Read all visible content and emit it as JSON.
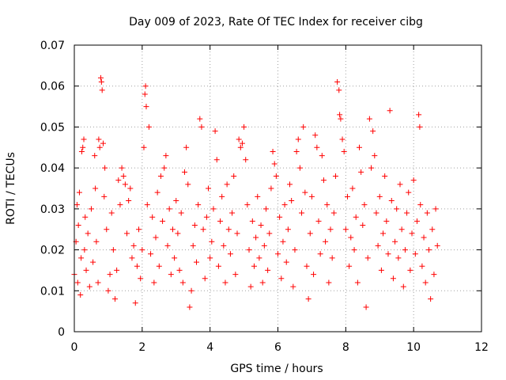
{
  "chart_data": {
    "type": "scatter",
    "title": "Day 009 of 2023, Rate Of TEC Index for receiver cibg",
    "xlabel": "GPS time / hours",
    "ylabel": "ROTI / TECUs",
    "xlim": [
      0,
      12
    ],
    "ylim": [
      0,
      0.07
    ],
    "x_ticks": [
      0,
      2,
      4,
      6,
      8,
      10,
      12
    ],
    "y_ticks": [
      0,
      0.01,
      0.02,
      0.03,
      0.04,
      0.05,
      0.06,
      0.07
    ],
    "x_tick_labels": [
      "0",
      "2",
      "4",
      "6",
      "8",
      "10",
      "12"
    ],
    "y_tick_labels": [
      "0",
      "0.01",
      "0.02",
      "0.03",
      "0.04",
      "0.05",
      "0.06",
      "0.07"
    ],
    "grid": true,
    "marker": "+",
    "color": "#ff0000",
    "series": [
      {
        "name": "ROTI",
        "points": [
          [
            0.0,
            0.014
          ],
          [
            0.05,
            0.022
          ],
          [
            0.08,
            0.031
          ],
          [
            0.1,
            0.012
          ],
          [
            0.12,
            0.026
          ],
          [
            0.15,
            0.034
          ],
          [
            0.18,
            0.009
          ],
          [
            0.2,
            0.018
          ],
          [
            0.22,
            0.044
          ],
          [
            0.25,
            0.045
          ],
          [
            0.28,
            0.047
          ],
          [
            0.3,
            0.02
          ],
          [
            0.32,
            0.028
          ],
          [
            0.35,
            0.015
          ],
          [
            0.4,
            0.024
          ],
          [
            0.45,
            0.011
          ],
          [
            0.5,
            0.03
          ],
          [
            0.55,
            0.017
          ],
          [
            0.6,
            0.043
          ],
          [
            0.62,
            0.035
          ],
          [
            0.65,
            0.022
          ],
          [
            0.7,
            0.012
          ],
          [
            0.72,
            0.047
          ],
          [
            0.75,
            0.045
          ],
          [
            0.78,
            0.062
          ],
          [
            0.8,
            0.061
          ],
          [
            0.82,
            0.059
          ],
          [
            0.85,
            0.046
          ],
          [
            0.88,
            0.033
          ],
          [
            0.9,
            0.04
          ],
          [
            0.95,
            0.025
          ],
          [
            1.0,
            0.01
          ],
          [
            1.05,
            0.014
          ],
          [
            1.1,
            0.029
          ],
          [
            1.15,
            0.02
          ],
          [
            1.2,
            0.008
          ],
          [
            1.25,
            0.015
          ],
          [
            1.3,
            0.037
          ],
          [
            1.35,
            0.031
          ],
          [
            1.4,
            0.04
          ],
          [
            1.45,
            0.038
          ],
          [
            1.5,
            0.036
          ],
          [
            1.55,
            0.024
          ],
          [
            1.6,
            0.032
          ],
          [
            1.65,
            0.035
          ],
          [
            1.7,
            0.018
          ],
          [
            1.75,
            0.021
          ],
          [
            1.8,
            0.007
          ],
          [
            1.85,
            0.016
          ],
          [
            1.9,
            0.025
          ],
          [
            1.95,
            0.013
          ],
          [
            2.0,
            0.02
          ],
          [
            2.05,
            0.045
          ],
          [
            2.08,
            0.058
          ],
          [
            2.1,
            0.06
          ],
          [
            2.12,
            0.055
          ],
          [
            2.15,
            0.031
          ],
          [
            2.2,
            0.05
          ],
          [
            2.25,
            0.019
          ],
          [
            2.3,
            0.028
          ],
          [
            2.35,
            0.012
          ],
          [
            2.4,
            0.023
          ],
          [
            2.45,
            0.034
          ],
          [
            2.5,
            0.016
          ],
          [
            2.55,
            0.038
          ],
          [
            2.6,
            0.027
          ],
          [
            2.65,
            0.04
          ],
          [
            2.7,
            0.043
          ],
          [
            2.75,
            0.021
          ],
          [
            2.8,
            0.03
          ],
          [
            2.85,
            0.014
          ],
          [
            2.9,
            0.025
          ],
          [
            2.95,
            0.018
          ],
          [
            3.0,
            0.032
          ],
          [
            3.05,
            0.024
          ],
          [
            3.1,
            0.015
          ],
          [
            3.15,
            0.029
          ],
          [
            3.2,
            0.012
          ],
          [
            3.25,
            0.039
          ],
          [
            3.3,
            0.045
          ],
          [
            3.35,
            0.036
          ],
          [
            3.4,
            0.006
          ],
          [
            3.45,
            0.01
          ],
          [
            3.5,
            0.021
          ],
          [
            3.55,
            0.026
          ],
          [
            3.6,
            0.017
          ],
          [
            3.65,
            0.031
          ],
          [
            3.7,
            0.052
          ],
          [
            3.75,
            0.05
          ],
          [
            3.8,
            0.025
          ],
          [
            3.85,
            0.013
          ],
          [
            3.9,
            0.028
          ],
          [
            3.95,
            0.035
          ],
          [
            4.0,
            0.018
          ],
          [
            4.05,
            0.022
          ],
          [
            4.1,
            0.03
          ],
          [
            4.15,
            0.049
          ],
          [
            4.2,
            0.042
          ],
          [
            4.25,
            0.016
          ],
          [
            4.3,
            0.027
          ],
          [
            4.35,
            0.033
          ],
          [
            4.4,
            0.021
          ],
          [
            4.45,
            0.012
          ],
          [
            4.5,
            0.036
          ],
          [
            4.55,
            0.025
          ],
          [
            4.6,
            0.019
          ],
          [
            4.65,
            0.029
          ],
          [
            4.7,
            0.038
          ],
          [
            4.75,
            0.014
          ],
          [
            4.8,
            0.024
          ],
          [
            4.85,
            0.047
          ],
          [
            4.9,
            0.045
          ],
          [
            4.95,
            0.046
          ],
          [
            5.0,
            0.05
          ],
          [
            5.05,
            0.042
          ],
          [
            5.1,
            0.031
          ],
          [
            5.15,
            0.02
          ],
          [
            5.2,
            0.011
          ],
          [
            5.25,
            0.027
          ],
          [
            5.3,
            0.016
          ],
          [
            5.35,
            0.023
          ],
          [
            5.4,
            0.033
          ],
          [
            5.45,
            0.018
          ],
          [
            5.5,
            0.026
          ],
          [
            5.55,
            0.012
          ],
          [
            5.6,
            0.021
          ],
          [
            5.65,
            0.03
          ],
          [
            5.7,
            0.015
          ],
          [
            5.75,
            0.024
          ],
          [
            5.8,
            0.035
          ],
          [
            5.85,
            0.044
          ],
          [
            5.9,
            0.041
          ],
          [
            5.95,
            0.038
          ],
          [
            6.0,
            0.019
          ],
          [
            6.05,
            0.028
          ],
          [
            6.1,
            0.013
          ],
          [
            6.15,
            0.022
          ],
          [
            6.2,
            0.031
          ],
          [
            6.25,
            0.017
          ],
          [
            6.3,
            0.025
          ],
          [
            6.35,
            0.036
          ],
          [
            6.4,
            0.032
          ],
          [
            6.45,
            0.011
          ],
          [
            6.5,
            0.02
          ],
          [
            6.55,
            0.044
          ],
          [
            6.6,
            0.047
          ],
          [
            6.65,
            0.04
          ],
          [
            6.7,
            0.029
          ],
          [
            6.75,
            0.05
          ],
          [
            6.8,
            0.034
          ],
          [
            6.85,
            0.016
          ],
          [
            6.9,
            0.008
          ],
          [
            6.95,
            0.024
          ],
          [
            7.0,
            0.033
          ],
          [
            7.05,
            0.014
          ],
          [
            7.1,
            0.048
          ],
          [
            7.15,
            0.045
          ],
          [
            7.2,
            0.027
          ],
          [
            7.25,
            0.019
          ],
          [
            7.3,
            0.043
          ],
          [
            7.35,
            0.037
          ],
          [
            7.4,
            0.022
          ],
          [
            7.45,
            0.031
          ],
          [
            7.5,
            0.012
          ],
          [
            7.55,
            0.025
          ],
          [
            7.6,
            0.018
          ],
          [
            7.65,
            0.029
          ],
          [
            7.7,
            0.038
          ],
          [
            7.75,
            0.061
          ],
          [
            7.8,
            0.059
          ],
          [
            7.82,
            0.053
          ],
          [
            7.85,
            0.052
          ],
          [
            7.9,
            0.047
          ],
          [
            7.95,
            0.044
          ],
          [
            8.0,
            0.025
          ],
          [
            8.05,
            0.033
          ],
          [
            8.1,
            0.016
          ],
          [
            8.15,
            0.023
          ],
          [
            8.2,
            0.035
          ],
          [
            8.25,
            0.02
          ],
          [
            8.3,
            0.028
          ],
          [
            8.35,
            0.012
          ],
          [
            8.4,
            0.045
          ],
          [
            8.45,
            0.039
          ],
          [
            8.5,
            0.026
          ],
          [
            8.55,
            0.031
          ],
          [
            8.6,
            0.006
          ],
          [
            8.65,
            0.018
          ],
          [
            8.7,
            0.052
          ],
          [
            8.75,
            0.04
          ],
          [
            8.8,
            0.049
          ],
          [
            8.85,
            0.043
          ],
          [
            8.9,
            0.029
          ],
          [
            8.95,
            0.021
          ],
          [
            9.0,
            0.033
          ],
          [
            9.05,
            0.015
          ],
          [
            9.1,
            0.024
          ],
          [
            9.15,
            0.038
          ],
          [
            9.2,
            0.027
          ],
          [
            9.25,
            0.019
          ],
          [
            9.3,
            0.054
          ],
          [
            9.35,
            0.032
          ],
          [
            9.4,
            0.013
          ],
          [
            9.45,
            0.022
          ],
          [
            9.5,
            0.03
          ],
          [
            9.55,
            0.018
          ],
          [
            9.6,
            0.036
          ],
          [
            9.65,
            0.025
          ],
          [
            9.7,
            0.011
          ],
          [
            9.75,
            0.02
          ],
          [
            9.8,
            0.029
          ],
          [
            9.85,
            0.034
          ],
          [
            9.9,
            0.015
          ],
          [
            9.95,
            0.024
          ],
          [
            10.0,
            0.037
          ],
          [
            10.05,
            0.019
          ],
          [
            10.1,
            0.027
          ],
          [
            10.15,
            0.053
          ],
          [
            10.18,
            0.05
          ],
          [
            10.2,
            0.031
          ],
          [
            10.25,
            0.016
          ],
          [
            10.3,
            0.023
          ],
          [
            10.35,
            0.012
          ],
          [
            10.4,
            0.029
          ],
          [
            10.45,
            0.02
          ],
          [
            10.5,
            0.008
          ],
          [
            10.55,
            0.025
          ],
          [
            10.6,
            0.014
          ],
          [
            10.65,
            0.03
          ],
          [
            10.7,
            0.021
          ]
        ]
      }
    ]
  }
}
